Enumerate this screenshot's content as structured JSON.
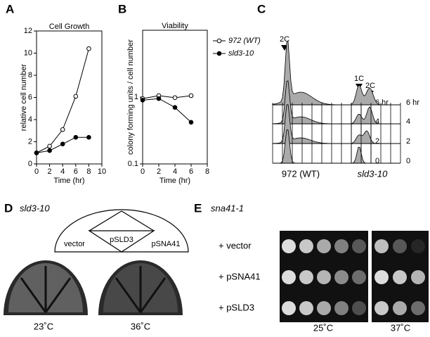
{
  "panel_labels": [
    "A",
    "B",
    "C",
    "D",
    "E"
  ],
  "chart_data": [
    {
      "type": "line",
      "title": "Cell Growth",
      "x_label": "Time (hr)",
      "y_label": "relative cell number",
      "x": [
        0,
        2,
        4,
        6,
        8
      ],
      "xlim": [
        0,
        10
      ],
      "xticks": [
        0,
        2,
        4,
        6,
        8,
        10
      ],
      "ylim": [
        0,
        12
      ],
      "yticks": [
        0,
        2,
        4,
        6,
        8,
        10,
        12
      ],
      "series": [
        {
          "color": "#000000",
          "marker_fill": "#ffffff",
          "values": [
            1,
            1.6,
            3.1,
            6.1,
            10.4
          ]
        },
        {
          "color": "#000000",
          "marker_fill": "#000000",
          "values": [
            1,
            1.2,
            1.8,
            2.4,
            2.4
          ]
        }
      ]
    },
    {
      "type": "line",
      "title": "Viability",
      "x_label": "Time (hr)",
      "y_label": "colony forming units / cell number",
      "x": [
        0,
        2,
        4,
        6
      ],
      "xlim": [
        0,
        8
      ],
      "xticks": [
        0,
        2,
        4,
        6,
        8
      ],
      "log_y": true,
      "ylim": [
        0.1,
        10
      ],
      "yticks": [
        0.1,
        1
      ],
      "series": [
        {
          "name": "972 (WT)",
          "color": "#000000",
          "marker_fill": "#ffffff",
          "values": [
            0.95,
            1.05,
            0.98,
            1.05
          ]
        },
        {
          "name": "sld3-10",
          "color": "#000000",
          "marker_fill": "#000000",
          "values": [
            0.9,
            0.95,
            0.7,
            0.42
          ]
        }
      ]
    }
  ],
  "flow_cytometry": {
    "wt_peak": "2C",
    "mutant_peaks": [
      "1C",
      "2C"
    ],
    "times": [
      "6 hr",
      "4",
      "2",
      "0"
    ],
    "strains": [
      "972 (WT)",
      "sld3-10"
    ]
  },
  "plate_assay": {
    "strain": "sld3-10",
    "sectors": [
      "pSLD3",
      "vector",
      "pSNA41"
    ],
    "temperatures": [
      "23˚C",
      "36˚C"
    ]
  },
  "spot_assay": {
    "strain": "sna41-1",
    "rows": [
      "+ vector",
      "+ pSNA41",
      "+ pSLD3"
    ],
    "temperatures": [
      "25˚C",
      "37˚C"
    ]
  }
}
